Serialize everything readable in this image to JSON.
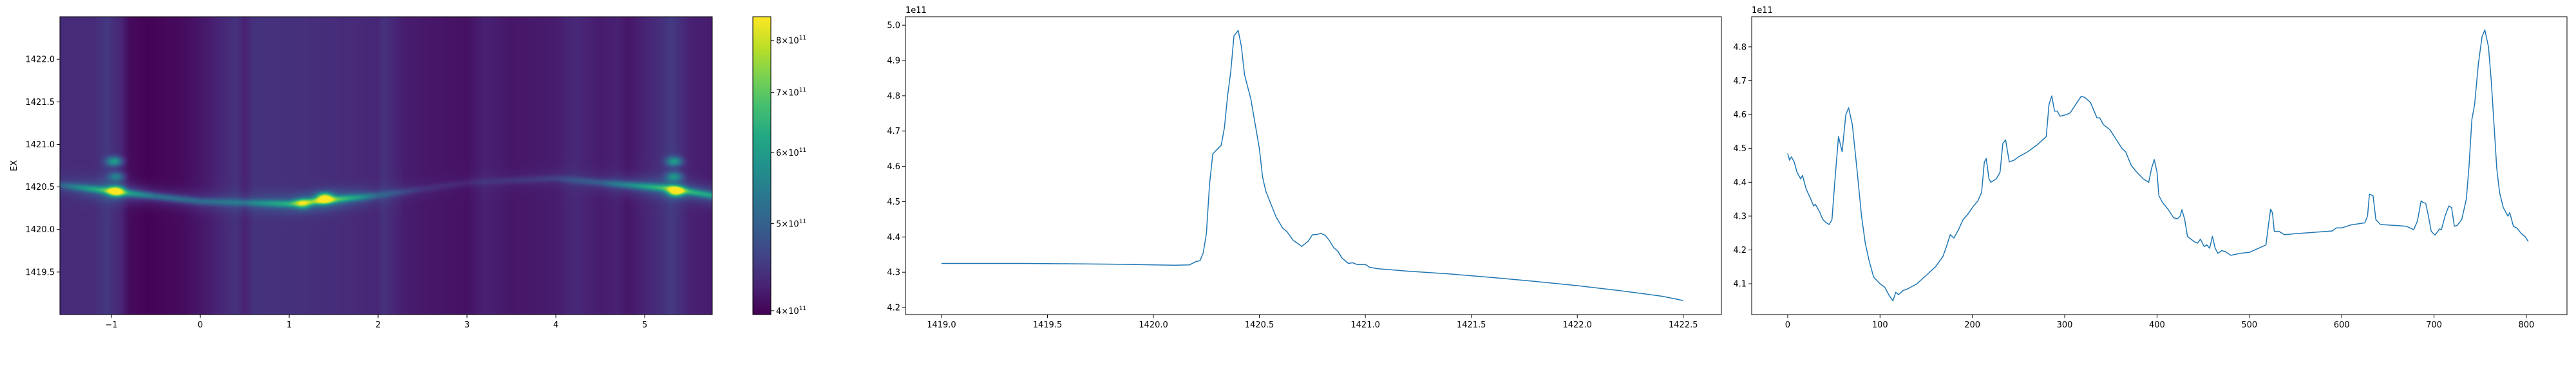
{
  "chart_data": [
    {
      "type": "heatmap",
      "colormap": "viridis",
      "ylabel": "EX",
      "xlim": [
        -1.58,
        5.76
      ],
      "ylim": [
        1419.0,
        1422.5
      ],
      "xticks": [
        -1,
        0,
        1,
        2,
        3,
        4,
        5
      ],
      "yticks": [
        1419.5,
        1420.0,
        1420.5,
        1421.0,
        1421.5,
        1422.0
      ],
      "xtick_labels": [
        "−1",
        "0",
        "1",
        "2",
        "3",
        "4",
        "5"
      ],
      "ytick_labels": [
        "1419.5",
        "1420.0",
        "1420.5",
        "1421.0",
        "1421.5",
        "1422.0"
      ],
      "value_unit_scale": 100000000000.0,
      "background_by_x": [
        [
          -1.58,
          4.35
        ],
        [
          -1.2,
          4.35
        ],
        [
          -1.05,
          4.48
        ],
        [
          -0.9,
          4.3
        ],
        [
          -0.8,
          4.05
        ],
        [
          -0.6,
          3.98
        ],
        [
          -0.2,
          4.05
        ],
        [
          0.1,
          4.2
        ],
        [
          0.4,
          4.42
        ],
        [
          0.5,
          4.25
        ],
        [
          0.6,
          4.42
        ],
        [
          1.0,
          4.4
        ],
        [
          1.5,
          4.36
        ],
        [
          2.0,
          4.3
        ],
        [
          2.05,
          4.42
        ],
        [
          2.3,
          4.2
        ],
        [
          2.6,
          4.15
        ],
        [
          3.0,
          4.1
        ],
        [
          3.2,
          4.25
        ],
        [
          3.5,
          4.15
        ],
        [
          4.0,
          4.2
        ],
        [
          4.2,
          4.32
        ],
        [
          4.5,
          4.2
        ],
        [
          4.7,
          4.25
        ],
        [
          4.8,
          4.15
        ],
        [
          5.2,
          4.4
        ],
        [
          5.3,
          4.52
        ],
        [
          5.5,
          4.25
        ],
        [
          5.76,
          4.2
        ]
      ],
      "ridge_center_by_x": [
        [
          -1.58,
          1420.52
        ],
        [
          -1.0,
          1420.45
        ],
        [
          0.0,
          1420.33
        ],
        [
          1.0,
          1420.3
        ],
        [
          1.5,
          1420.35
        ],
        [
          2.0,
          1420.4
        ],
        [
          3.0,
          1420.55
        ],
        [
          4.0,
          1420.6
        ],
        [
          4.5,
          1420.55
        ],
        [
          5.3,
          1420.48
        ],
        [
          5.76,
          1420.4
        ]
      ],
      "ridge_amplitude_by_x": [
        [
          -1.58,
          0.5
        ],
        [
          -1.0,
          2.0
        ],
        [
          -0.5,
          1.0
        ],
        [
          0.0,
          0.8
        ],
        [
          0.5,
          0.8
        ],
        [
          1.0,
          1.6
        ],
        [
          1.4,
          2.5
        ],
        [
          2.0,
          0.6
        ],
        [
          2.5,
          0.2
        ],
        [
          3.0,
          0.15
        ],
        [
          4.0,
          0.3
        ],
        [
          4.5,
          0.6
        ],
        [
          5.3,
          2.0
        ],
        [
          5.76,
          1.5
        ]
      ],
      "peaks": [
        {
          "x": -0.95,
          "y": 1420.45,
          "value": 8.2
        },
        {
          "x": -0.97,
          "y": 1420.8,
          "value": 6.0
        },
        {
          "x": -0.95,
          "y": 1420.62,
          "value": 5.5
        },
        {
          "x": 1.4,
          "y": 1420.37,
          "value": 8.0
        },
        {
          "x": 1.15,
          "y": 1420.3,
          "value": 6.3
        },
        {
          "x": 5.35,
          "y": 1420.45,
          "value": 8.5
        },
        {
          "x": 5.33,
          "y": 1420.8,
          "value": 6.0
        },
        {
          "x": 5.33,
          "y": 1420.62,
          "value": 5.8
        }
      ],
      "colorbar": {
        "scale": "log",
        "vmin": 396000000000.0,
        "vmax": 850000000000.0,
        "ticks": [
          400000000000.0,
          500000000000.0,
          600000000000.0,
          700000000000.0,
          800000000000.0
        ],
        "tick_labels": [
          {
            "mantissa": "4",
            "base": "×10",
            "exp": "11"
          },
          {
            "mantissa": "5",
            "base": "×10",
            "exp": "11"
          },
          {
            "mantissa": "6",
            "base": "×10",
            "exp": "11"
          },
          {
            "mantissa": "7",
            "base": "×10",
            "exp": "11"
          },
          {
            "mantissa": "8",
            "base": "×10",
            "exp": "11"
          }
        ]
      }
    },
    {
      "type": "line",
      "color": "#1f77b4",
      "offset_text": "1e11",
      "xlim": [
        1418.83,
        1422.68
      ],
      "ylim": [
        4.18,
        5.024
      ],
      "xticks": [
        1419.0,
        1419.5,
        1420.0,
        1420.5,
        1421.0,
        1421.5,
        1422.0,
        1422.5
      ],
      "xtick_labels": [
        "1419.0",
        "1419.5",
        "1420.0",
        "1420.5",
        "1421.0",
        "1421.5",
        "1422.0",
        "1422.5"
      ],
      "yticks": [
        4.2,
        4.3,
        4.4,
        4.5,
        4.6,
        4.7,
        4.8,
        4.9,
        5.0
      ],
      "ytick_labels": [
        "4.2",
        "4.3",
        "4.4",
        "4.5",
        "4.6",
        "4.7",
        "4.8",
        "4.9",
        "5.0"
      ],
      "points": [
        [
          1419.0,
          4.325
        ],
        [
          1419.2,
          4.325
        ],
        [
          1419.4,
          4.325
        ],
        [
          1419.6,
          4.324
        ],
        [
          1419.8,
          4.323
        ],
        [
          1420.0,
          4.321
        ],
        [
          1420.1,
          4.32
        ],
        [
          1420.17,
          4.321
        ],
        [
          1420.2,
          4.33
        ],
        [
          1420.22,
          4.333
        ],
        [
          1420.235,
          4.355
        ],
        [
          1420.25,
          4.41
        ],
        [
          1420.265,
          4.55
        ],
        [
          1420.28,
          4.635
        ],
        [
          1420.3,
          4.648
        ],
        [
          1420.32,
          4.66
        ],
        [
          1420.335,
          4.71
        ],
        [
          1420.35,
          4.8
        ],
        [
          1420.365,
          4.87
        ],
        [
          1420.38,
          4.97
        ],
        [
          1420.4,
          4.985
        ],
        [
          1420.415,
          4.94
        ],
        [
          1420.43,
          4.86
        ],
        [
          1420.46,
          4.79
        ],
        [
          1420.48,
          4.72
        ],
        [
          1420.5,
          4.65
        ],
        [
          1420.515,
          4.57
        ],
        [
          1420.53,
          4.53
        ],
        [
          1420.55,
          4.5
        ],
        [
          1420.58,
          4.455
        ],
        [
          1420.61,
          4.425
        ],
        [
          1420.63,
          4.415
        ],
        [
          1420.66,
          4.39
        ],
        [
          1420.68,
          4.382
        ],
        [
          1420.7,
          4.373
        ],
        [
          1420.73,
          4.388
        ],
        [
          1420.75,
          4.406
        ],
        [
          1420.77,
          4.407
        ],
        [
          1420.79,
          4.41
        ],
        [
          1420.81,
          4.405
        ],
        [
          1420.83,
          4.39
        ],
        [
          1420.85,
          4.37
        ],
        [
          1420.87,
          4.36
        ],
        [
          1420.89,
          4.34
        ],
        [
          1420.92,
          4.325
        ],
        [
          1420.94,
          4.327
        ],
        [
          1420.96,
          4.322
        ],
        [
          1421.0,
          4.322
        ],
        [
          1421.02,
          4.314
        ],
        [
          1421.06,
          4.31
        ],
        [
          1421.2,
          4.303
        ],
        [
          1421.4,
          4.295
        ],
        [
          1421.6,
          4.285
        ],
        [
          1421.8,
          4.274
        ],
        [
          1422.0,
          4.262
        ],
        [
          1422.2,
          4.248
        ],
        [
          1422.4,
          4.232
        ],
        [
          1422.5,
          4.22
        ]
      ]
    },
    {
      "type": "line",
      "color": "#1f77b4",
      "offset_text": "1e11",
      "xlim": [
        -39,
        844
      ],
      "ylim": [
        4.009,
        4.889
      ],
      "xticks": [
        0,
        100,
        200,
        300,
        400,
        500,
        600,
        700,
        800
      ],
      "xtick_labels": [
        "0",
        "100",
        "200",
        "300",
        "400",
        "500",
        "600",
        "700",
        "800"
      ],
      "yticks": [
        4.1,
        4.2,
        4.3,
        4.4,
        4.5,
        4.6,
        4.7,
        4.8
      ],
      "ytick_labels": [
        "4.1",
        "4.2",
        "4.3",
        "4.4",
        "4.5",
        "4.6",
        "4.7",
        "4.8"
      ],
      "points": [
        [
          0,
          4.485
        ],
        [
          2,
          4.465
        ],
        [
          4,
          4.475
        ],
        [
          7,
          4.46
        ],
        [
          10,
          4.43
        ],
        [
          14,
          4.41
        ],
        [
          16,
          4.42
        ],
        [
          20,
          4.38
        ],
        [
          25,
          4.35
        ],
        [
          28,
          4.33
        ],
        [
          30,
          4.335
        ],
        [
          35,
          4.31
        ],
        [
          38,
          4.29
        ],
        [
          42,
          4.28
        ],
        [
          45,
          4.275
        ],
        [
          48,
          4.29
        ],
        [
          51,
          4.4
        ],
        [
          55,
          4.535
        ],
        [
          59,
          4.49
        ],
        [
          63,
          4.6
        ],
        [
          66,
          4.62
        ],
        [
          70,
          4.57
        ],
        [
          75,
          4.44
        ],
        [
          80,
          4.3
        ],
        [
          84,
          4.22
        ],
        [
          88,
          4.17
        ],
        [
          93,
          4.12
        ],
        [
          100,
          4.1
        ],
        [
          105,
          4.09
        ],
        [
          110,
          4.065
        ],
        [
          114,
          4.05
        ],
        [
          117,
          4.075
        ],
        [
          120,
          4.068
        ],
        [
          125,
          4.08
        ],
        [
          130,
          4.085
        ],
        [
          140,
          4.1
        ],
        [
          150,
          4.125
        ],
        [
          160,
          4.15
        ],
        [
          168,
          4.18
        ],
        [
          172,
          4.21
        ],
        [
          176,
          4.245
        ],
        [
          180,
          4.235
        ],
        [
          185,
          4.26
        ],
        [
          190,
          4.29
        ],
        [
          195,
          4.305
        ],
        [
          200,
          4.325
        ],
        [
          206,
          4.345
        ],
        [
          210,
          4.37
        ],
        [
          213,
          4.46
        ],
        [
          215,
          4.47
        ],
        [
          218,
          4.41
        ],
        [
          220,
          4.4
        ],
        [
          226,
          4.41
        ],
        [
          230,
          4.43
        ],
        [
          233,
          4.515
        ],
        [
          236,
          4.525
        ],
        [
          240,
          4.46
        ],
        [
          245,
          4.465
        ],
        [
          250,
          4.475
        ],
        [
          260,
          4.49
        ],
        [
          270,
          4.51
        ],
        [
          280,
          4.535
        ],
        [
          283,
          4.63
        ],
        [
          286,
          4.655
        ],
        [
          289,
          4.61
        ],
        [
          292,
          4.61
        ],
        [
          295,
          4.595
        ],
        [
          302,
          4.6
        ],
        [
          306,
          4.605
        ],
        [
          312,
          4.63
        ],
        [
          318,
          4.654
        ],
        [
          322,
          4.65
        ],
        [
          328,
          4.635
        ],
        [
          335,
          4.59
        ],
        [
          338,
          4.59
        ],
        [
          342,
          4.57
        ],
        [
          349,
          4.555
        ],
        [
          355,
          4.53
        ],
        [
          362,
          4.5
        ],
        [
          366,
          4.49
        ],
        [
          372,
          4.45
        ],
        [
          378,
          4.43
        ],
        [
          385,
          4.41
        ],
        [
          391,
          4.4
        ],
        [
          394,
          4.44
        ],
        [
          397,
          4.467
        ],
        [
          400,
          4.43
        ],
        [
          402,
          4.36
        ],
        [
          406,
          4.34
        ],
        [
          412,
          4.32
        ],
        [
          418,
          4.295
        ],
        [
          422,
          4.292
        ],
        [
          425,
          4.3
        ],
        [
          427,
          4.319
        ],
        [
          430,
          4.29
        ],
        [
          433,
          4.24
        ],
        [
          440,
          4.225
        ],
        [
          444,
          4.22
        ],
        [
          447,
          4.232
        ],
        [
          451,
          4.21
        ],
        [
          454,
          4.215
        ],
        [
          457,
          4.205
        ],
        [
          460,
          4.24
        ],
        [
          463,
          4.205
        ],
        [
          466,
          4.19
        ],
        [
          470,
          4.198
        ],
        [
          474,
          4.195
        ],
        [
          480,
          4.184
        ],
        [
          490,
          4.19
        ],
        [
          500,
          4.193
        ],
        [
          510,
          4.205
        ],
        [
          518,
          4.215
        ],
        [
          521,
          4.28
        ],
        [
          523,
          4.32
        ],
        [
          525,
          4.31
        ],
        [
          527,
          4.255
        ],
        [
          532,
          4.255
        ],
        [
          538,
          4.245
        ],
        [
          550,
          4.248
        ],
        [
          570,
          4.252
        ],
        [
          590,
          4.256
        ],
        [
          594,
          4.265
        ],
        [
          600,
          4.265
        ],
        [
          610,
          4.274
        ],
        [
          625,
          4.28
        ],
        [
          628,
          4.3
        ],
        [
          630,
          4.365
        ],
        [
          634,
          4.36
        ],
        [
          637,
          4.29
        ],
        [
          642,
          4.275
        ],
        [
          660,
          4.272
        ],
        [
          670,
          4.27
        ],
        [
          678,
          4.26
        ],
        [
          682,
          4.285
        ],
        [
          686,
          4.345
        ],
        [
          688,
          4.34
        ],
        [
          691,
          4.338
        ],
        [
          694,
          4.3
        ],
        [
          697,
          4.255
        ],
        [
          701,
          4.244
        ],
        [
          706,
          4.262
        ],
        [
          708,
          4.26
        ],
        [
          712,
          4.3
        ],
        [
          716,
          4.33
        ],
        [
          719,
          4.325
        ],
        [
          722,
          4.27
        ],
        [
          725,
          4.272
        ],
        [
          730,
          4.29
        ],
        [
          735,
          4.35
        ],
        [
          738,
          4.45
        ],
        [
          741,
          4.585
        ],
        [
          744,
          4.63
        ],
        [
          748,
          4.75
        ],
        [
          752,
          4.83
        ],
        [
          755,
          4.85
        ],
        [
          759,
          4.8
        ],
        [
          762,
          4.7
        ],
        [
          765,
          4.57
        ],
        [
          768,
          4.44
        ],
        [
          771,
          4.37
        ],
        [
          775,
          4.325
        ],
        [
          780,
          4.3
        ],
        [
          782,
          4.31
        ],
        [
          786,
          4.27
        ],
        [
          790,
          4.264
        ],
        [
          794,
          4.25
        ],
        [
          799,
          4.238
        ],
        [
          802,
          4.225
        ]
      ]
    }
  ]
}
